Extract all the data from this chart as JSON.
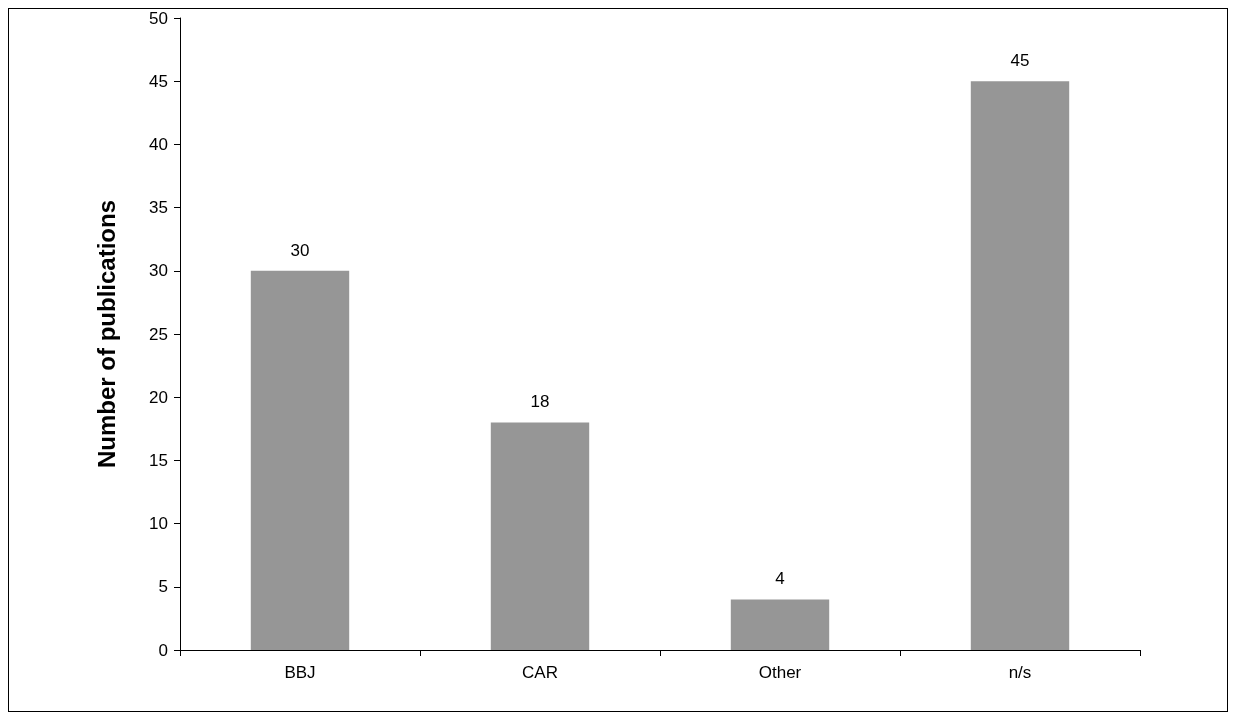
{
  "chart_data": {
    "type": "bar",
    "ylabel": "Number of publications",
    "categories": [
      "BBJ",
      "CAR",
      "Other",
      "n/s"
    ],
    "values": [
      30,
      18,
      4,
      45
    ],
    "color": "#969696",
    "ylim": [
      0,
      50
    ],
    "yticks": [
      0,
      5,
      10,
      15,
      20,
      25,
      30,
      35,
      40,
      45,
      50
    ],
    "grid": false,
    "data_labels": true
  }
}
